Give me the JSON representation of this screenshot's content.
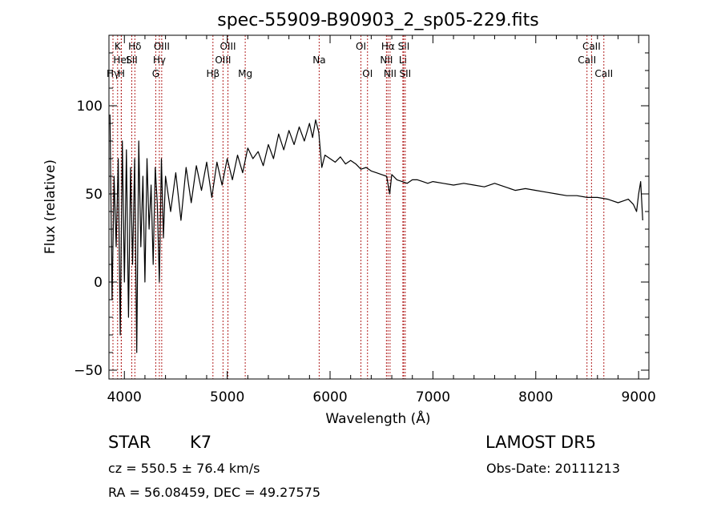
{
  "chart_data": {
    "type": "line",
    "title": "spec-55909-B90903_2_sp05-229.fits",
    "xlabel": "Wavelength (Å)",
    "ylabel": "Flux (relative)",
    "xlim": [
      3850,
      9100
    ],
    "ylim": [
      -55,
      140
    ],
    "xticks": [
      4000,
      5000,
      6000,
      7000,
      8000,
      9000
    ],
    "yticks": [
      -50,
      0,
      50,
      100
    ],
    "grid": false,
    "legend": "none",
    "line_color": "#000000",
    "marker_color": "#b22222",
    "series": [
      {
        "x": [
          3860,
          3880,
          3900,
          3920,
          3940,
          3960,
          3980,
          4000,
          4020,
          4040,
          4060,
          4080,
          4100,
          4120,
          4140,
          4160,
          4180,
          4200,
          4220,
          4240,
          4260,
          4280,
          4300,
          4320,
          4340,
          4360,
          4380,
          4400,
          4450,
          4500,
          4550,
          4600,
          4650,
          4700,
          4750,
          4800,
          4850,
          4900,
          4950,
          5000,
          5050,
          5100,
          5150,
          5200,
          5250,
          5300,
          5350,
          5400,
          5450,
          5500,
          5550,
          5600,
          5650,
          5700,
          5750,
          5800,
          5830,
          5860,
          5890,
          5920,
          5950,
          6000,
          6050,
          6100,
          6150,
          6200,
          6250,
          6300,
          6350,
          6400,
          6450,
          6500,
          6550,
          6580,
          6600,
          6650,
          6700,
          6750,
          6800,
          6850,
          6900,
          6950,
          7000,
          7100,
          7200,
          7300,
          7400,
          7500,
          7600,
          7700,
          7800,
          7900,
          8000,
          8100,
          8200,
          8300,
          8400,
          8500,
          8600,
          8700,
          8800,
          8850,
          8900,
          8950,
          8980,
          9000,
          9020,
          9040
        ],
        "y": [
          95,
          -10,
          60,
          20,
          70,
          -30,
          80,
          0,
          75,
          -20,
          65,
          10,
          70,
          -40,
          80,
          20,
          60,
          0,
          70,
          30,
          55,
          10,
          65,
          45,
          0,
          70,
          25,
          60,
          40,
          62,
          35,
          65,
          45,
          66,
          52,
          68,
          48,
          68,
          55,
          70,
          58,
          72,
          62,
          76,
          70,
          74,
          66,
          78,
          70,
          84,
          75,
          86,
          78,
          88,
          80,
          90,
          82,
          92,
          85,
          65,
          72,
          70,
          68,
          71,
          67,
          69,
          67,
          64,
          65,
          63,
          62,
          61,
          60,
          50,
          61,
          58,
          57,
          56,
          58,
          58,
          57,
          56,
          57,
          56,
          55,
          56,
          55,
          54,
          56,
          54,
          52,
          53,
          52,
          51,
          50,
          49,
          49,
          48,
          48,
          47,
          45,
          46,
          47,
          44,
          40,
          50,
          57,
          35
        ]
      }
    ],
    "line_markers": [
      {
        "x": 3889,
        "label": "Hγ",
        "row": 2
      },
      {
        "x": 3934,
        "label": "K",
        "row": 0
      },
      {
        "x": 3970,
        "label": "HeI",
        "row": 1
      },
      {
        "x": 3970,
        "label": "H",
        "row": 2
      },
      {
        "x": 4072,
        "label": "SII",
        "row": 1
      },
      {
        "x": 4102,
        "label": "Hδ",
        "row": 0
      },
      {
        "x": 4305,
        "label": "G",
        "row": 2
      },
      {
        "x": 4340,
        "label": "Hγ",
        "row": 1
      },
      {
        "x": 4363,
        "label": "OIII",
        "row": 0
      },
      {
        "x": 4861,
        "label": "Hβ",
        "row": 2
      },
      {
        "x": 4959,
        "label": "OIII",
        "row": 1
      },
      {
        "x": 5007,
        "label": "OIII",
        "row": 0
      },
      {
        "x": 5175,
        "label": "Mg",
        "row": 2
      },
      {
        "x": 5894,
        "label": "Na",
        "row": 1
      },
      {
        "x": 6300,
        "label": "OI",
        "row": 0
      },
      {
        "x": 6364,
        "label": "OI",
        "row": 2
      },
      {
        "x": 6548,
        "label": "NII",
        "row": 1
      },
      {
        "x": 6563,
        "label": "Hα",
        "row": 0
      },
      {
        "x": 6583,
        "label": "NII",
        "row": 2
      },
      {
        "x": 6708,
        "label": "Li",
        "row": 1
      },
      {
        "x": 6716,
        "label": "SII",
        "row": 0
      },
      {
        "x": 6731,
        "label": "SII",
        "row": 2
      },
      {
        "x": 8498,
        "label": "CaII",
        "row": 1
      },
      {
        "x": 8542,
        "label": "CaII",
        "row": 0
      },
      {
        "x": 8662,
        "label": "CaII",
        "row": 2
      }
    ]
  },
  "footer": {
    "class": "STAR",
    "subclass": "K7",
    "survey": "LAMOST DR5",
    "redshift": "cz = 550.5 ± 76.4 km/s",
    "obs_date": "Obs-Date: 20111213",
    "coords": "RA =  56.08459, DEC =  49.27575"
  }
}
